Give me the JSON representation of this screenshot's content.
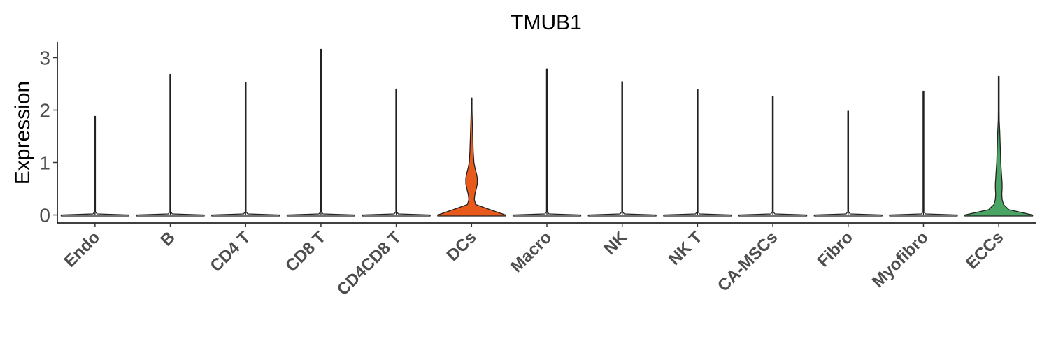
{
  "chart_data": {
    "type": "violin",
    "title": "TMUB1",
    "xlabel": "",
    "ylabel": "Expression",
    "ylim": [
      -0.15,
      3.3
    ],
    "yticks": [
      0,
      1,
      2,
      3
    ],
    "grid": false,
    "legend": "none",
    "categories": [
      "Endo",
      "B",
      "CD4 T",
      "CD8 T",
      "CD4CD8 T",
      "DCs",
      "Macro",
      "NK",
      "NK T",
      "CA-MSCs",
      "Fibro",
      "Myofibro",
      "ECCs"
    ],
    "max_values": [
      1.88,
      2.68,
      2.53,
      3.16,
      2.4,
      2.23,
      2.79,
      2.54,
      2.39,
      2.26,
      1.98,
      2.36,
      2.64
    ],
    "highlighted": {
      "DCs": {
        "color": "#E8591C",
        "density": [
          [
            0,
            1.0
          ],
          [
            0.1,
            0.55
          ],
          [
            0.2,
            0.12
          ],
          [
            0.3,
            0.08
          ],
          [
            0.4,
            0.1
          ],
          [
            0.5,
            0.14
          ],
          [
            0.6,
            0.17
          ],
          [
            0.7,
            0.17
          ],
          [
            0.8,
            0.14
          ],
          [
            0.9,
            0.1
          ],
          [
            1.0,
            0.07
          ],
          [
            1.2,
            0.05
          ],
          [
            1.4,
            0.04
          ],
          [
            1.6,
            0.03
          ],
          [
            1.8,
            0.02
          ],
          [
            2.0,
            0.01
          ],
          [
            2.23,
            0.0
          ]
        ]
      },
      "ECCs": {
        "color": "#4AA564",
        "density": [
          [
            0,
            1.0
          ],
          [
            0.1,
            0.3
          ],
          [
            0.2,
            0.14
          ],
          [
            0.3,
            0.1
          ],
          [
            0.4,
            0.09
          ],
          [
            0.5,
            0.1
          ],
          [
            0.6,
            0.1
          ],
          [
            0.7,
            0.09
          ],
          [
            0.8,
            0.08
          ],
          [
            1.0,
            0.06
          ],
          [
            1.2,
            0.05
          ],
          [
            1.4,
            0.04
          ],
          [
            1.6,
            0.03
          ],
          [
            1.8,
            0.015
          ],
          [
            2.0,
            0.01
          ],
          [
            2.3,
            0.0
          ],
          [
            2.64,
            0.0
          ]
        ]
      }
    },
    "default_color": "#ffffff"
  }
}
